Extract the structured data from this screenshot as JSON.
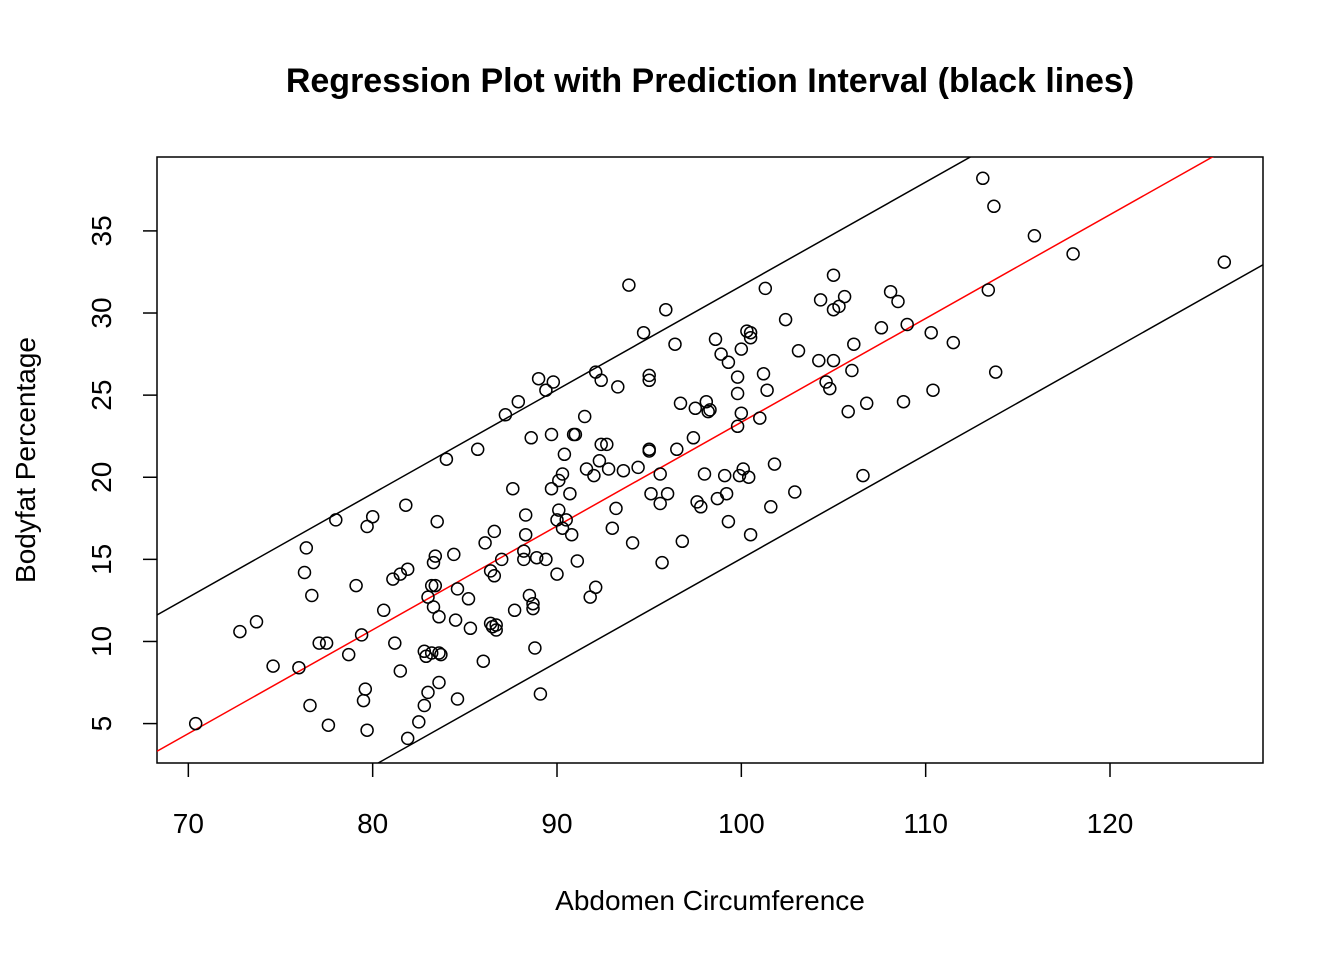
{
  "chart_data": {
    "type": "scatter",
    "title": "Regression Plot with Prediction Interval (black lines)",
    "xlabel": "Abdomen Circumference",
    "ylabel": "Bodyfat Percentage",
    "xlim": [
      68.3,
      128.3
    ],
    "ylim": [
      2.6,
      39.5
    ],
    "x_ticks": [
      70,
      80,
      90,
      100,
      110,
      120
    ],
    "y_ticks": [
      5,
      10,
      15,
      20,
      25,
      30,
      35
    ],
    "grid": false,
    "legend": "none",
    "colors": {
      "points": "#000000",
      "fit_line": "#ff0000",
      "interval_lines": "#000000"
    },
    "fit_line": {
      "color": "red",
      "slope": 0.632,
      "intercept": -39.85
    },
    "prediction_interval": {
      "color": "black",
      "upper_offset": 8.3,
      "lower_offset": -8.3
    },
    "points": [
      [
        70.4,
        5.0
      ],
      [
        72.8,
        10.6
      ],
      [
        73.7,
        11.2
      ],
      [
        74.6,
        8.5
      ],
      [
        76.0,
        8.4
      ],
      [
        76.3,
        14.2
      ],
      [
        76.4,
        15.7
      ],
      [
        76.6,
        6.1
      ],
      [
        76.7,
        12.8
      ],
      [
        77.1,
        9.9
      ],
      [
        77.5,
        9.9
      ],
      [
        77.6,
        4.9
      ],
      [
        78.0,
        17.4
      ],
      [
        78.7,
        9.2
      ],
      [
        79.1,
        13.4
      ],
      [
        79.4,
        10.4
      ],
      [
        79.5,
        6.4
      ],
      [
        79.6,
        7.1
      ],
      [
        79.7,
        17.0
      ],
      [
        79.7,
        4.6
      ],
      [
        80.0,
        17.6
      ],
      [
        80.6,
        11.9
      ],
      [
        81.1,
        13.8
      ],
      [
        81.2,
        9.9
      ],
      [
        81.5,
        8.2
      ],
      [
        81.5,
        14.1
      ],
      [
        81.8,
        18.3
      ],
      [
        81.9,
        14.4
      ],
      [
        81.9,
        4.1
      ],
      [
        82.5,
        5.1
      ],
      [
        82.8,
        9.4
      ],
      [
        82.8,
        6.1
      ],
      [
        82.9,
        9.1
      ],
      [
        83.0,
        6.9
      ],
      [
        83.0,
        12.7
      ],
      [
        83.2,
        9.3
      ],
      [
        83.2,
        13.4
      ],
      [
        83.3,
        12.1
      ],
      [
        83.3,
        14.8
      ],
      [
        83.4,
        15.2
      ],
      [
        83.4,
        13.4
      ],
      [
        83.5,
        17.3
      ],
      [
        83.6,
        9.3
      ],
      [
        83.6,
        7.5
      ],
      [
        83.6,
        11.5
      ],
      [
        83.7,
        9.2
      ],
      [
        84.0,
        21.1
      ],
      [
        84.4,
        15.3
      ],
      [
        84.5,
        11.3
      ],
      [
        84.6,
        13.2
      ],
      [
        84.6,
        6.5
      ],
      [
        85.2,
        12.6
      ],
      [
        85.3,
        10.8
      ],
      [
        85.7,
        21.7
      ],
      [
        86.0,
        8.8
      ],
      [
        86.1,
        16.0
      ],
      [
        86.4,
        14.3
      ],
      [
        86.4,
        11.1
      ],
      [
        86.5,
        10.9
      ],
      [
        86.6,
        14.0
      ],
      [
        86.6,
        16.7
      ],
      [
        86.7,
        11.0
      ],
      [
        86.7,
        10.7
      ],
      [
        87.0,
        15.0
      ],
      [
        87.2,
        23.8
      ],
      [
        87.6,
        19.3
      ],
      [
        87.7,
        11.9
      ],
      [
        87.9,
        24.6
      ],
      [
        88.2,
        15.0
      ],
      [
        88.2,
        15.5
      ],
      [
        88.3,
        17.7
      ],
      [
        88.3,
        16.5
      ],
      [
        88.5,
        12.8
      ],
      [
        88.6,
        22.4
      ],
      [
        88.7,
        12.3
      ],
      [
        88.7,
        12.0
      ],
      [
        88.8,
        9.6
      ],
      [
        88.9,
        15.1
      ],
      [
        89.0,
        26.0
      ],
      [
        89.1,
        6.8
      ],
      [
        89.4,
        25.3
      ],
      [
        89.4,
        15.0
      ],
      [
        89.7,
        19.3
      ],
      [
        89.7,
        22.6
      ],
      [
        89.8,
        25.8
      ],
      [
        90.0,
        17.4
      ],
      [
        90.0,
        14.1
      ],
      [
        90.1,
        19.8
      ],
      [
        90.1,
        18.0
      ],
      [
        90.3,
        16.9
      ],
      [
        90.3,
        20.2
      ],
      [
        90.4,
        21.4
      ],
      [
        90.5,
        17.4
      ],
      [
        90.7,
        19.0
      ],
      [
        90.8,
        16.5
      ],
      [
        90.9,
        22.6
      ],
      [
        91.0,
        22.6
      ],
      [
        91.1,
        14.9
      ],
      [
        91.5,
        23.7
      ],
      [
        91.6,
        20.5
      ],
      [
        91.8,
        12.7
      ],
      [
        92.0,
        20.1
      ],
      [
        92.1,
        26.4
      ],
      [
        92.1,
        13.3
      ],
      [
        92.3,
        21.0
      ],
      [
        92.4,
        22.0
      ],
      [
        92.4,
        25.9
      ],
      [
        92.7,
        22.0
      ],
      [
        92.8,
        20.5
      ],
      [
        93.0,
        16.9
      ],
      [
        93.2,
        18.1
      ],
      [
        93.3,
        25.5
      ],
      [
        93.6,
        20.4
      ],
      [
        93.9,
        31.7
      ],
      [
        94.1,
        16.0
      ],
      [
        94.4,
        20.6
      ],
      [
        94.7,
        28.8
      ],
      [
        95.0,
        26.2
      ],
      [
        95.0,
        25.9
      ],
      [
        95.0,
        21.6
      ],
      [
        95.0,
        21.7
      ],
      [
        95.1,
        19.0
      ],
      [
        95.6,
        20.2
      ],
      [
        95.6,
        18.4
      ],
      [
        95.7,
        14.8
      ],
      [
        95.9,
        30.2
      ],
      [
        96.0,
        19.0
      ],
      [
        96.4,
        28.1
      ],
      [
        96.5,
        21.7
      ],
      [
        96.7,
        24.5
      ],
      [
        96.8,
        16.1
      ],
      [
        97.4,
        22.4
      ],
      [
        97.5,
        24.2
      ],
      [
        97.6,
        18.5
      ],
      [
        97.8,
        18.2
      ],
      [
        98.0,
        20.2
      ],
      [
        98.1,
        24.6
      ],
      [
        98.2,
        24.0
      ],
      [
        98.3,
        24.1
      ],
      [
        98.6,
        28.4
      ],
      [
        98.7,
        18.7
      ],
      [
        98.9,
        27.5
      ],
      [
        99.1,
        20.1
      ],
      [
        99.2,
        19.0
      ],
      [
        99.3,
        27.0
      ],
      [
        99.3,
        17.3
      ],
      [
        99.8,
        25.1
      ],
      [
        99.8,
        26.1
      ],
      [
        99.8,
        23.1
      ],
      [
        99.9,
        20.1
      ],
      [
        100.0,
        27.8
      ],
      [
        100.0,
        23.9
      ],
      [
        100.1,
        20.5
      ],
      [
        100.3,
        28.9
      ],
      [
        100.4,
        20.0
      ],
      [
        100.5,
        28.8
      ],
      [
        100.5,
        28.5
      ],
      [
        100.5,
        16.5
      ],
      [
        101.0,
        23.6
      ],
      [
        101.2,
        26.3
      ],
      [
        101.3,
        31.5
      ],
      [
        101.4,
        25.3
      ],
      [
        101.6,
        18.2
      ],
      [
        101.8,
        20.8
      ],
      [
        102.4,
        29.6
      ],
      [
        102.9,
        19.1
      ],
      [
        103.1,
        27.7
      ],
      [
        104.2,
        27.1
      ],
      [
        104.3,
        30.8
      ],
      [
        104.6,
        25.8
      ],
      [
        104.8,
        25.4
      ],
      [
        105.0,
        32.3
      ],
      [
        105.0,
        30.2
      ],
      [
        105.0,
        27.1
      ],
      [
        105.3,
        30.4
      ],
      [
        105.6,
        31.0
      ],
      [
        105.8,
        24.0
      ],
      [
        106.0,
        26.5
      ],
      [
        106.1,
        28.1
      ],
      [
        106.6,
        20.1
      ],
      [
        106.8,
        24.5
      ],
      [
        107.6,
        29.1
      ],
      [
        108.1,
        31.3
      ],
      [
        108.5,
        30.7
      ],
      [
        108.8,
        24.6
      ],
      [
        109.0,
        29.3
      ],
      [
        110.3,
        28.8
      ],
      [
        110.4,
        25.3
      ],
      [
        111.5,
        28.2
      ],
      [
        113.1,
        38.2
      ],
      [
        113.4,
        31.4
      ],
      [
        113.7,
        36.5
      ],
      [
        113.8,
        26.4
      ],
      [
        115.9,
        34.7
      ],
      [
        118.0,
        33.6
      ],
      [
        126.2,
        33.1
      ]
    ]
  }
}
